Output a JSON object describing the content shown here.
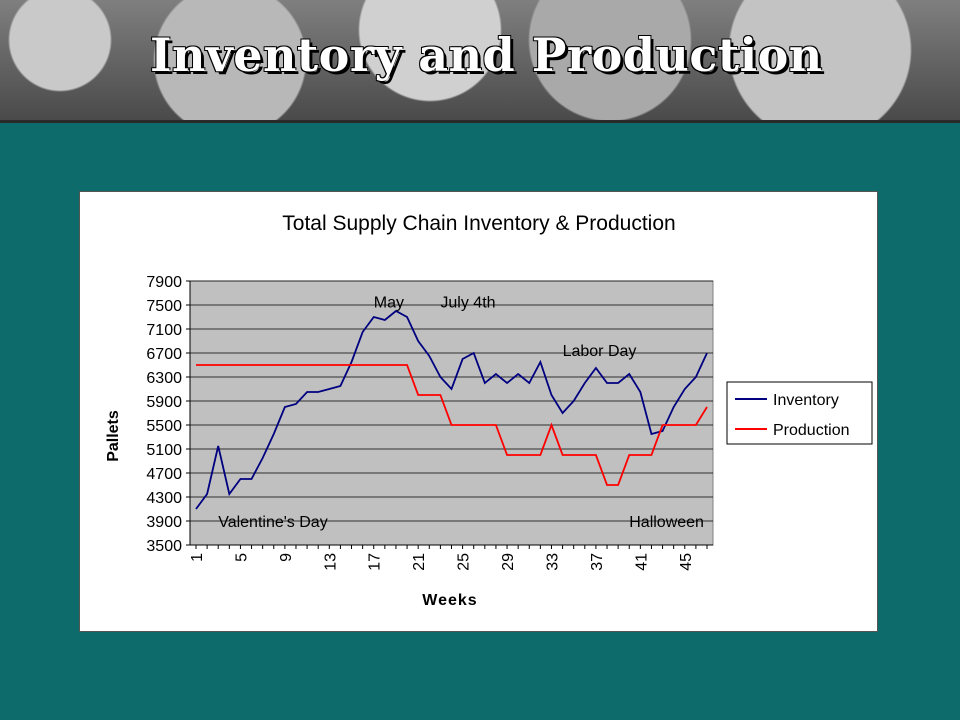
{
  "slide": {
    "title": "Inventory and Production"
  },
  "colors": {
    "background": "#0e6b6b",
    "plot_area": "#c0c0c0",
    "inventory": "#000080",
    "production": "#ff0000"
  },
  "chart_data": {
    "type": "line",
    "title": "Total Supply Chain Inventory & Production",
    "xlabel": "Weeks",
    "ylabel": "Pallets",
    "ylim": [
      3500,
      7900
    ],
    "yticks": [
      3500,
      3900,
      4300,
      4700,
      5100,
      5500,
      5900,
      6300,
      6700,
      7100,
      7500,
      7900
    ],
    "xticks": [
      "1",
      "5",
      "9",
      "13",
      "17",
      "21",
      "25",
      "29",
      "33",
      "37",
      "41",
      "45"
    ],
    "grid": true,
    "legend": "right",
    "x": [
      1,
      2,
      3,
      4,
      5,
      6,
      7,
      8,
      9,
      10,
      11,
      12,
      13,
      14,
      15,
      16,
      17,
      18,
      19,
      20,
      21,
      22,
      23,
      24,
      25,
      26,
      27,
      28,
      29,
      30,
      31,
      32,
      33,
      34,
      35,
      36,
      37,
      38,
      39,
      40,
      41,
      42,
      43,
      44,
      45,
      46,
      47
    ],
    "series": [
      {
        "name": "Inventory",
        "values": [
          4100,
          4350,
          5150,
          4350,
          4600,
          4600,
          4950,
          5350,
          5800,
          5850,
          6050,
          6050,
          6100,
          6150,
          6550,
          7050,
          7300,
          7250,
          7400,
          7300,
          6900,
          6650,
          6300,
          6100,
          6600,
          6700,
          6200,
          6350,
          6200,
          6350,
          6200,
          6550,
          6000,
          5700,
          5900,
          6200,
          6450,
          6200,
          6200,
          6350,
          6050,
          5350,
          5400,
          5800,
          6100,
          6300,
          6700
        ]
      },
      {
        "name": "Production",
        "values": [
          6500,
          6500,
          6500,
          6500,
          6500,
          6500,
          6500,
          6500,
          6500,
          6500,
          6500,
          6500,
          6500,
          6500,
          6500,
          6500,
          6500,
          6500,
          6500,
          6500,
          6000,
          6000,
          6000,
          5500,
          5500,
          5500,
          5500,
          5500,
          5000,
          5000,
          5000,
          5000,
          5500,
          5000,
          5000,
          5000,
          5000,
          4500,
          4500,
          5000,
          5000,
          5000,
          5500,
          5500,
          5500,
          5500,
          5800
        ]
      }
    ],
    "annotations": [
      {
        "text": "May",
        "x": 17,
        "y": 7560
      },
      {
        "text": "July 4th",
        "x": 23,
        "y": 7560
      },
      {
        "text": "Labor Day",
        "x": 34,
        "y": 6750
      },
      {
        "text": "Valentine's Day",
        "x": 3,
        "y": 3900
      },
      {
        "text": "Halloween",
        "x": 40,
        "y": 3900
      }
    ]
  }
}
